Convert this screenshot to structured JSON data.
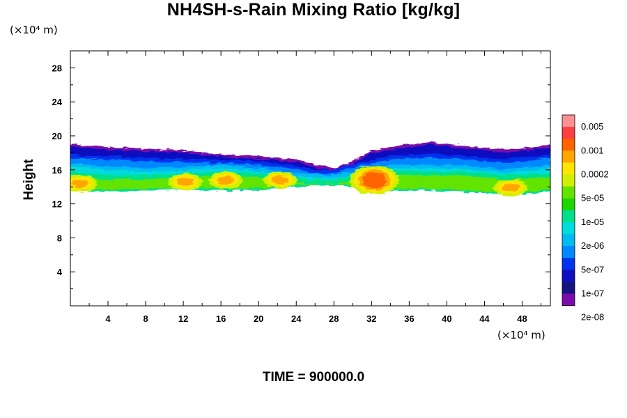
{
  "chart_data": {
    "type": "heatmap",
    "title": "NH4SH-s-Rain Mixing Ratio [kg/kg]",
    "ylabel": "Height",
    "xlabel": "",
    "x_unit": "(×10⁴ m)",
    "y_unit": "(×10⁴ m)",
    "footer": "TIME = 900000.0",
    "xlim": [
      0,
      51
    ],
    "ylim": [
      0,
      30
    ],
    "x_ticks": [
      4,
      8,
      12,
      16,
      20,
      24,
      28,
      32,
      36,
      40,
      44,
      48
    ],
    "y_ticks": [
      4,
      8,
      12,
      16,
      20,
      24,
      28
    ],
    "colorbar": {
      "labels": [
        "0.005",
        "0.001",
        "0.0002",
        "5e-05",
        "1e-05",
        "2e-06",
        "5e-07",
        "1e-07",
        "2e-08"
      ],
      "colors": [
        "#ff9090",
        "#ff4040",
        "#ff6400",
        "#ffa600",
        "#ffe600",
        "#cff000",
        "#62e400",
        "#1ed600",
        "#00e08a",
        "#00dcdc",
        "#00bbf0",
        "#0088ff",
        "#0033ee",
        "#1010c0",
        "#141480",
        "#7a0caa"
      ]
    },
    "layer": {
      "base_km_x1e4": [
        13.4,
        14.2
      ],
      "top_range_x1e4": [
        16.0,
        19.3
      ],
      "hotspots": [
        {
          "x": 1.0,
          "y": 14.4,
          "level": "0.0002"
        },
        {
          "x": 12.2,
          "y": 14.6,
          "level": "0.0002"
        },
        {
          "x": 16.5,
          "y": 14.8,
          "level": "0.0002"
        },
        {
          "x": 22.3,
          "y": 14.8,
          "level": "0.0002"
        },
        {
          "x": 32.3,
          "y": 14.8,
          "level": "0.001"
        },
        {
          "x": 46.8,
          "y": 13.9,
          "level": "0.0002"
        }
      ]
    }
  }
}
